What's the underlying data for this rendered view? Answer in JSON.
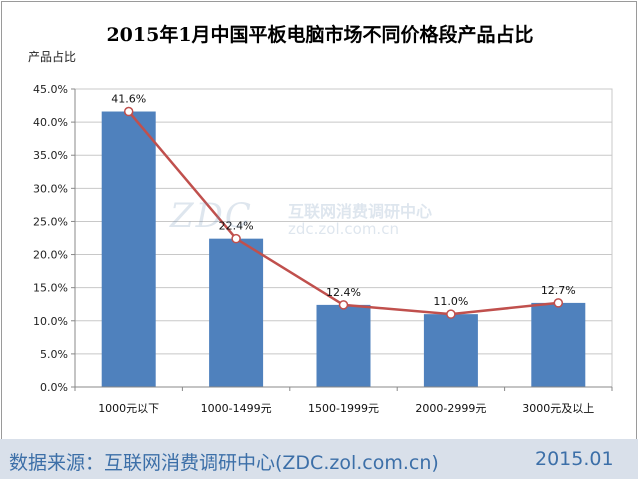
{
  "chart_data": {
    "type": "bar",
    "title": "2015年1月中国平板电脑市场不同价格段产品占比",
    "ylabel": "产品占比",
    "xlabel": "",
    "categories": [
      "1000元以下",
      "1000-1499元",
      "1500-1999元",
      "2000-2999元",
      "3000元及以上"
    ],
    "values": [
      41.6,
      22.4,
      12.4,
      11.0,
      12.7
    ],
    "data_labels": [
      "41.6%",
      "22.4%",
      "12.4%",
      "11.0%",
      "12.7%"
    ],
    "ylim": [
      0,
      45
    ],
    "y_ticks": [
      "0.0%",
      "5.0%",
      "10.0%",
      "15.0%",
      "20.0%",
      "25.0%",
      "30.0%",
      "35.0%",
      "40.0%",
      "45.0%"
    ],
    "grid": true,
    "overlay_line": true,
    "colors": {
      "bar": "#4f81bd",
      "line": "#c0504d",
      "marker_fill": "#ffffff"
    }
  },
  "watermark": {
    "logo": "ZDC",
    "name": "互联网消费调研中心",
    "url": "zdc.zol.com.cn"
  },
  "footer": {
    "source": "数据来源：互联网消费调研中心(ZDC.zol.com.cn)",
    "date": "2015.01"
  }
}
